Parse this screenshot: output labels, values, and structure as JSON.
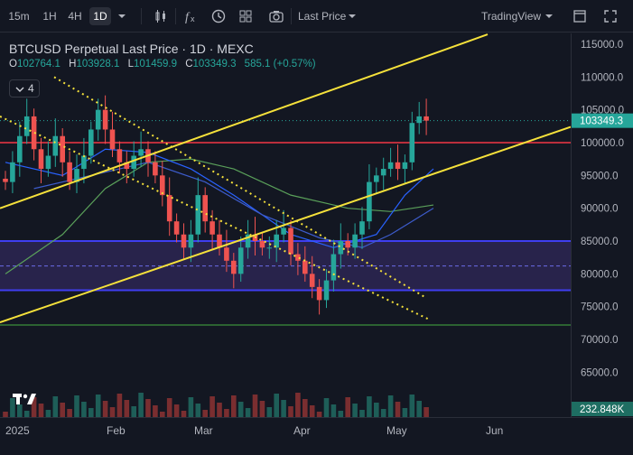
{
  "toolbar": {
    "timeframes": [
      "15m",
      "1H",
      "4H",
      "1D"
    ],
    "active_timeframe": "1D",
    "price_type": "Last Price",
    "brand": "TradingView"
  },
  "legend": {
    "title": "BTCUSD Perpetual Last Price · 1D · MEXC",
    "o_key": "O",
    "o_val": "102764.1",
    "h_key": "H",
    "h_val": "103928.1",
    "l_key": "L",
    "l_val": "101459.9",
    "c_key": "C",
    "c_val": "103349.3",
    "change": "585.1 (+0.57%)"
  },
  "indicators_count": "4",
  "price_scale": {
    "ticks": [
      "115000.0",
      "110000.0",
      "105000.0",
      "100000.0",
      "95000.0",
      "90000.0",
      "85000.0",
      "80000.0",
      "75000.0",
      "70000.0",
      "65000.0"
    ],
    "last_price": "103349.3",
    "volume_label": "232.848K"
  },
  "time_scale": {
    "labels": [
      "2025",
      "Feb",
      "Mar",
      "Apr",
      "May",
      "Jun"
    ]
  },
  "colors": {
    "bg": "#131722",
    "up": "#26a69a",
    "down": "#ef5350",
    "trendline": "#f5e13b",
    "support_band": "#3a2d6e",
    "band_border": "#3f3ef0",
    "resistance": "#f23645",
    "ma_green": "#4caf50",
    "ma_blue": "#2962ff"
  },
  "chart_data": {
    "type": "candlestick",
    "symbol": "BTCUSD Perpetual",
    "interval": "1D",
    "x": [
      "2025-01",
      "2025-02",
      "2025-03",
      "2025-04",
      "2025-05",
      "2025-06"
    ],
    "ylim": [
      62000,
      117000
    ],
    "last_price": 103349.3,
    "closes_approx": [
      94000,
      97000,
      101000,
      104000,
      99000,
      96000,
      98000,
      101000,
      97000,
      94000,
      96000,
      98000,
      102000,
      105000,
      102000,
      99000,
      97000,
      96000,
      98000,
      99000,
      97000,
      95000,
      92000,
      88000,
      86000,
      84000,
      86000,
      92000,
      88000,
      86000,
      84000,
      82000,
      80000,
      84000,
      86000,
      85000,
      84000,
      84000,
      86000,
      87000,
      83000,
      82000,
      80000,
      78000,
      76000,
      79000,
      83000,
      85000,
      84000,
      86000,
      88000,
      94000,
      95000,
      96000,
      97000,
      96000,
      97000,
      103000,
      104000,
      103349
    ],
    "horizontal_levels": [
      100000,
      85000,
      81200,
      77500,
      72200
    ],
    "support_band": [
      77500,
      85000
    ]
  }
}
